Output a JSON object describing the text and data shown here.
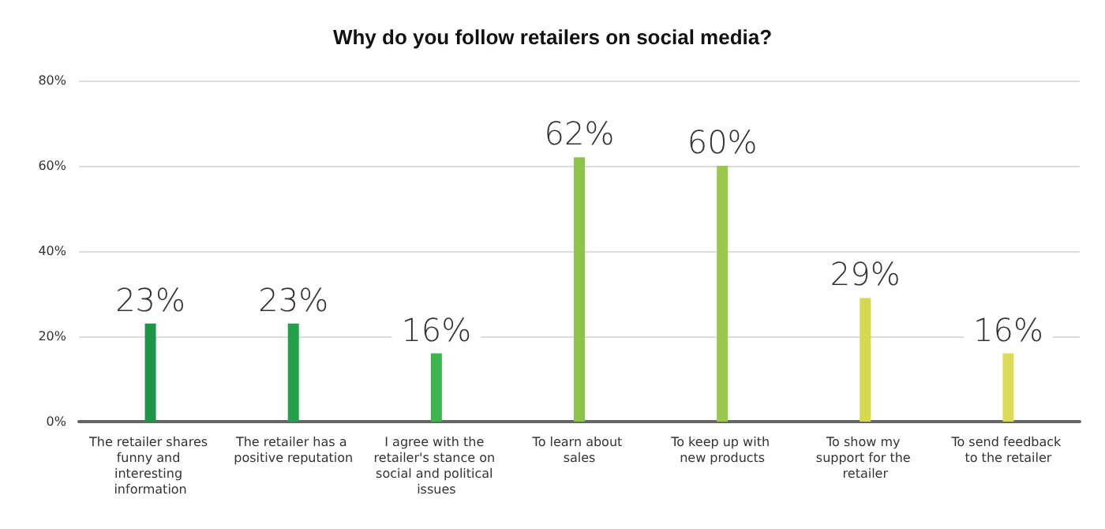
{
  "chart_data": {
    "type": "bar",
    "title": "Why do you follow retailers on social media?",
    "categories": [
      "The retailer shares funny and interesting information",
      "The retailer has a positive reputation",
      "I agree with the retailer's stance on social and political issues",
      "To learn about sales",
      "To keep up with new products",
      "To show my support for the retailer",
      "To send feedback to the retailer"
    ],
    "values": [
      23,
      23,
      16,
      62,
      60,
      29,
      16
    ],
    "colors": [
      "#1e9447",
      "#23a04c",
      "#3db54f",
      "#8cc34a",
      "#9bc84a",
      "#d6d94f",
      "#dcdc5a"
    ],
    "value_labels": [
      "23%",
      "23%",
      "16%",
      "62%",
      "60%",
      "29%",
      "16%"
    ],
    "ylim": [
      0,
      80
    ],
    "yticks": [
      {
        "value": 0,
        "label": "0%"
      },
      {
        "value": 20,
        "label": "20%"
      },
      {
        "value": 40,
        "label": "40%"
      },
      {
        "value": 60,
        "label": "60%"
      },
      {
        "value": 80,
        "label": "80%"
      }
    ],
    "grid": "y"
  }
}
